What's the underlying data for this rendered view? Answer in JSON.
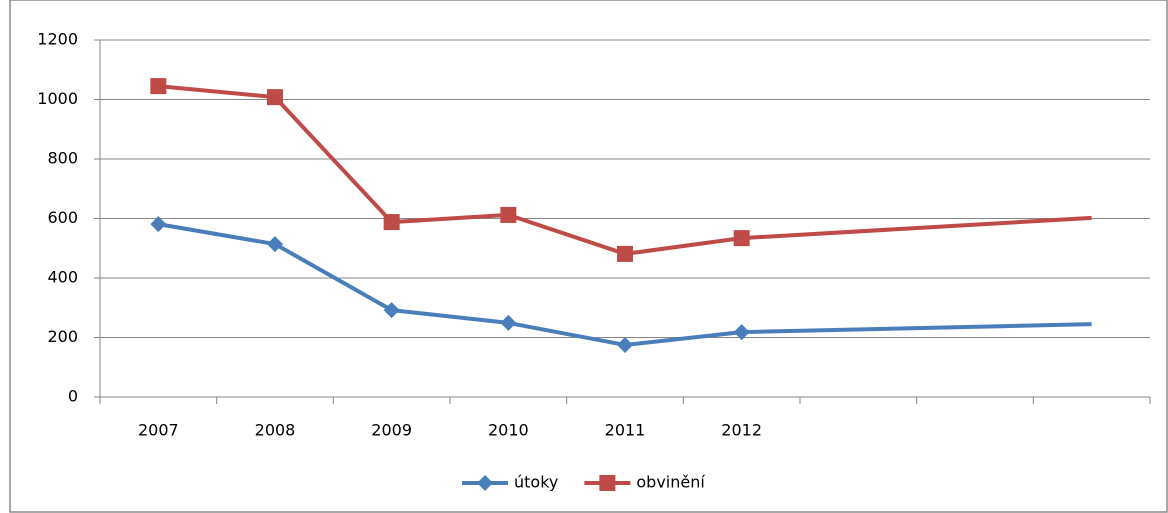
{
  "chart_data": {
    "type": "line",
    "categories": [
      "2007",
      "2008",
      "2009",
      "2010",
      "2011",
      "2012",
      null,
      null,
      null
    ],
    "series": [
      {
        "name": "útoky",
        "color": "#4a7ebb",
        "marker": "diamond",
        "values": [
          581,
          514,
          292,
          249,
          175,
          218,
          null,
          null,
          245
        ]
      },
      {
        "name": "obvinění",
        "color": "#be4b48",
        "marker": "square",
        "values": [
          1045,
          1008,
          588,
          612,
          481,
          534,
          null,
          null,
          602
        ]
      }
    ],
    "ylim": [
      0,
      1200
    ],
    "yticks": [
      0,
      200,
      400,
      600,
      800,
      1000,
      1200
    ],
    "grid": true,
    "connect_gaps": true,
    "legend": "bottom"
  }
}
